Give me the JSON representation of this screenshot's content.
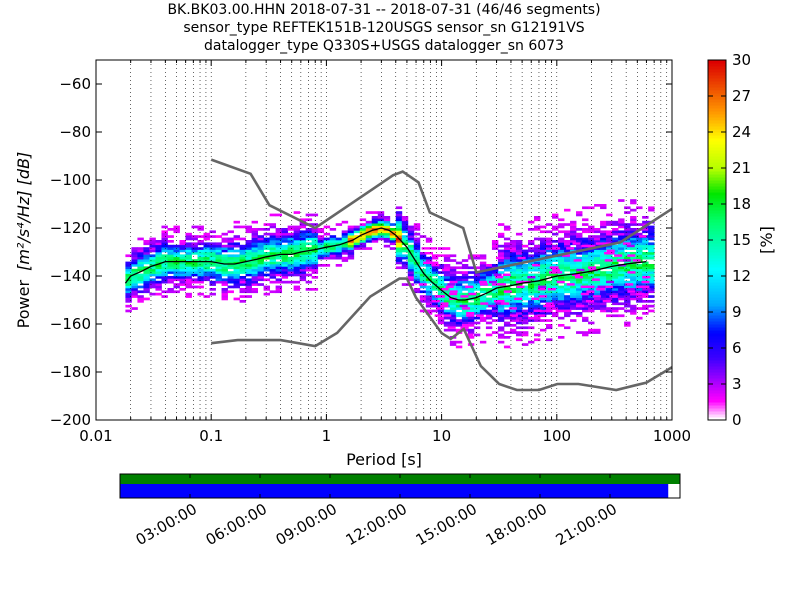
{
  "header": {
    "line1": "BK.BK03.00.HHN   2018-07-31 -- 2018-07-31  (46/46 segments)",
    "line2": "sensor_type REFTEK151B-120USGS sensor_sn G12191VS",
    "line3": "datalogger_type Q330S+USGS datalogger_sn 6073"
  },
  "chart_data": [
    {
      "type": "heatmap",
      "xlabel": "Period [s]",
      "ylabel_prefix": "Power",
      "ylabel_units": "[m²/s⁴/Hz] [dB]",
      "x_scale": "log",
      "xlim": [
        0.01,
        1000
      ],
      "ylim": [
        -200,
        -50
      ],
      "x_ticks": [
        0.01,
        0.1,
        1,
        10,
        100,
        1000
      ],
      "x_tick_labels": [
        "0.01",
        "0.1",
        "1",
        "10",
        "100",
        "1000"
      ],
      "y_ticks": [
        -200,
        -180,
        -160,
        -140,
        -120,
        -100,
        -80,
        -60
      ],
      "y_tick_labels": [
        "−200",
        "−180",
        "−160",
        "−140",
        "−120",
        "−100",
        "−80",
        "−60"
      ],
      "grid": "dotted vertical",
      "colorbar": {
        "label": "[%]",
        "min": 0,
        "max": 30,
        "ticks": [
          0,
          3,
          6,
          9,
          12,
          15,
          18,
          21,
          24,
          27,
          30
        ]
      },
      "noise_models": [
        {
          "name": "high noise model",
          "x": [
            0.1,
            0.22,
            0.32,
            0.8,
            3.8,
            4.6,
            6.3,
            7.9,
            15.4,
            20,
            354.8,
            1000
          ],
          "y": [
            -91.5,
            -97.4,
            -110.5,
            -120,
            -98,
            -96.5,
            -101,
            -113.5,
            -120,
            -138.5,
            -126,
            -112
          ]
        },
        {
          "name": "low noise model",
          "x": [
            0.1,
            0.17,
            0.4,
            0.8,
            1.24,
            2.4,
            4.3,
            5,
            6,
            10,
            12,
            15.6,
            21.9,
            31.6,
            45,
            70,
            101,
            154,
            328,
            600,
            1000
          ],
          "y": [
            -168,
            -166.7,
            -166.7,
            -169.2,
            -163.7,
            -148.6,
            -141.1,
            -141.1,
            -149,
            -163.8,
            -166.2,
            -162.1,
            -177.5,
            -185,
            -187.5,
            -187.5,
            -185,
            -185,
            -187.5,
            -184.4,
            -178
          ]
        }
      ],
      "mode_curve": {
        "x": [
          0.018,
          0.02,
          0.025,
          0.03,
          0.035,
          0.04,
          0.05,
          0.06,
          0.08,
          0.1,
          0.13,
          0.16,
          0.2,
          0.25,
          0.3,
          0.4,
          0.5,
          0.6,
          0.8,
          1,
          1.3,
          1.7,
          2,
          2.5,
          3,
          3.5,
          4,
          5,
          6,
          7,
          8,
          10,
          12,
          14,
          16,
          20,
          25,
          30,
          40,
          50,
          70,
          100,
          150,
          200,
          300,
          400,
          600
        ],
        "y": [
          -143,
          -140,
          -138,
          -136,
          -135,
          -134,
          -134,
          -134,
          -134,
          -134,
          -135,
          -135,
          -134,
          -133,
          -132,
          -131,
          -131,
          -130,
          -129,
          -128,
          -127,
          -125,
          -123,
          -121,
          -120,
          -121,
          -123,
          -128,
          -134,
          -139,
          -142,
          -146,
          -149,
          -150,
          -150,
          -149,
          -147,
          -145,
          -144,
          -143,
          -142,
          -140,
          -139,
          -138,
          -136,
          -135,
          -134
        ]
      }
    },
    {
      "type": "timeline",
      "x_tick_labels": [
        "03:00:00",
        "06:00:00",
        "09:00:00",
        "12:00:00",
        "15:00:00",
        "18:00:00",
        "21:00:00"
      ],
      "colors": {
        "available": "#008000",
        "used": "#0000ff"
      },
      "available_fraction": 1.0,
      "used_fraction": 0.979
    }
  ]
}
